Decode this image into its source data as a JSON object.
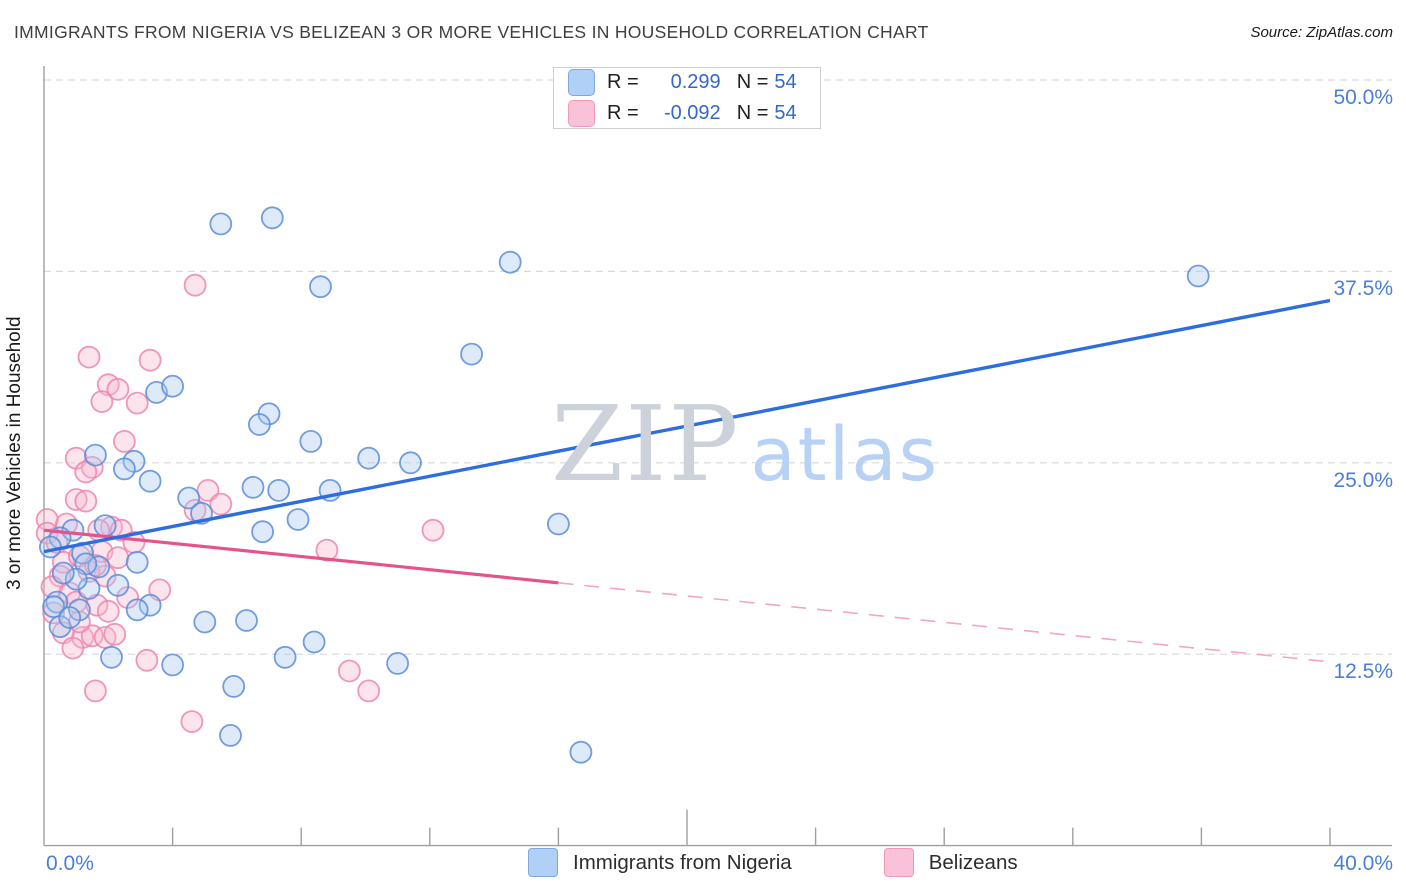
{
  "header": {
    "title": "IMMIGRANTS FROM NIGERIA VS BELIZEAN 3 OR MORE VEHICLES IN HOUSEHOLD CORRELATION CHART",
    "source": "Source: ZipAtlas.com"
  },
  "legend_box": {
    "rows": [
      {
        "series": "Immigrants from Nigeria",
        "r_label": "R =",
        "r_value": "0.299",
        "n_label": "N =",
        "n_value": "54"
      },
      {
        "series": "Belizeans",
        "r_label": "R =",
        "r_value": "-0.092",
        "n_label": "N =",
        "n_value": "54"
      }
    ]
  },
  "y_axis": {
    "title": "3 or more Vehicles in Household",
    "tick_labels": [
      "50.0%",
      "37.5%",
      "25.0%",
      "12.5%"
    ]
  },
  "x_axis": {
    "tick_labels": [
      "0.0%",
      "40.0%"
    ]
  },
  "watermark": {
    "zip": "ZIP",
    "atlas": "atlas"
  },
  "bottom_legend": {
    "items": [
      {
        "label": "Immigrants from Nigeria",
        "fill": "#b1d0f7",
        "border": "#7fa8dc"
      },
      {
        "label": "Belizeans",
        "fill": "#f9c2d8",
        "border": "#f09ab8"
      }
    ]
  },
  "chart_data": {
    "type": "scatter",
    "title": "Immigrants from Nigeria vs Belizean 3 or more Vehicles in Household",
    "xlabel_left": "0.0%",
    "xlabel_right": "40.0%",
    "ylabel": "3 or more Vehicles in Household",
    "xlim": [
      0,
      40
    ],
    "ylim": [
      0,
      52.5
    ],
    "x_unit": "%",
    "y_unit": "%",
    "grid_y_values": [
      50.0,
      37.5,
      25.0,
      12.5
    ],
    "x_tick_step": 4,
    "legend_position": "top-center and bottom-center",
    "series": [
      {
        "name": "Immigrants from Nigeria",
        "R": 0.299,
        "N": 54,
        "marker_fill": "#a8c8f0",
        "marker_stroke": "#5b8dd9",
        "points": [
          [
            5.5,
            40.6
          ],
          [
            7.1,
            41.0
          ],
          [
            14.5,
            38.1
          ],
          [
            8.6,
            36.5
          ],
          [
            35.9,
            37.2
          ],
          [
            13.3,
            32.1
          ],
          [
            3.5,
            29.6
          ],
          [
            4.0,
            30.0
          ],
          [
            7.0,
            28.2
          ],
          [
            6.7,
            27.5
          ],
          [
            8.3,
            26.4
          ],
          [
            10.1,
            25.3
          ],
          [
            11.4,
            25.0
          ],
          [
            1.6,
            25.5
          ],
          [
            2.8,
            25.1
          ],
          [
            2.5,
            24.6
          ],
          [
            3.3,
            23.8
          ],
          [
            6.5,
            23.4
          ],
          [
            7.3,
            23.2
          ],
          [
            8.9,
            23.2
          ],
          [
            4.5,
            22.7
          ],
          [
            4.9,
            21.7
          ],
          [
            7.9,
            21.3
          ],
          [
            6.8,
            20.5
          ],
          [
            16.0,
            21.0
          ],
          [
            0.9,
            20.6
          ],
          [
            0.5,
            20.1
          ],
          [
            1.2,
            19.1
          ],
          [
            1.7,
            18.2
          ],
          [
            2.9,
            18.5
          ],
          [
            1.3,
            18.4
          ],
          [
            0.4,
            15.9
          ],
          [
            0.3,
            15.6
          ],
          [
            1.4,
            16.8
          ],
          [
            1.1,
            15.4
          ],
          [
            3.3,
            15.7
          ],
          [
            2.9,
            15.4
          ],
          [
            6.3,
            14.7
          ],
          [
            5.0,
            14.6
          ],
          [
            5.9,
            10.4
          ],
          [
            5.8,
            7.2
          ],
          [
            2.1,
            12.3
          ],
          [
            4.0,
            11.8
          ],
          [
            7.5,
            12.3
          ],
          [
            8.4,
            13.3
          ],
          [
            11.0,
            11.9
          ],
          [
            16.7,
            6.1
          ],
          [
            1.0,
            17.4
          ],
          [
            0.5,
            14.3
          ],
          [
            0.2,
            19.5
          ],
          [
            0.6,
            17.8
          ],
          [
            1.9,
            20.9
          ],
          [
            2.3,
            17.0
          ],
          [
            0.8,
            14.9
          ]
        ],
        "trend_line": {
          "x_start": 0,
          "y_start": 19.2,
          "x_end": 40,
          "y_end": 35.6,
          "style": "solid",
          "color": "#2e6de0"
        }
      },
      {
        "name": "Belizeans",
        "R": -0.092,
        "N": 54,
        "marker_fill": "#f8b8d0",
        "marker_stroke": "#ef85ab",
        "points": [
          [
            4.7,
            36.6
          ],
          [
            1.4,
            31.9
          ],
          [
            3.3,
            31.7
          ],
          [
            2.0,
            30.1
          ],
          [
            2.3,
            29.8
          ],
          [
            1.8,
            29.0
          ],
          [
            2.9,
            28.9
          ],
          [
            2.5,
            26.4
          ],
          [
            1.0,
            25.3
          ],
          [
            1.5,
            24.7
          ],
          [
            1.3,
            24.4
          ],
          [
            5.1,
            23.2
          ],
          [
            0.1,
            21.3
          ],
          [
            0.1,
            20.4
          ],
          [
            1.0,
            22.6
          ],
          [
            1.3,
            22.5
          ],
          [
            2.1,
            20.8
          ],
          [
            2.4,
            20.6
          ],
          [
            1.7,
            20.6
          ],
          [
            1.8,
            19.2
          ],
          [
            0.6,
            18.5
          ],
          [
            2.3,
            18.8
          ],
          [
            1.9,
            17.6
          ],
          [
            0.5,
            17.6
          ],
          [
            0.25,
            16.9
          ],
          [
            0.8,
            16.5
          ],
          [
            1.0,
            15.9
          ],
          [
            1.65,
            15.7
          ],
          [
            3.6,
            16.7
          ],
          [
            8.8,
            19.3
          ],
          [
            12.1,
            20.6
          ],
          [
            5.5,
            22.3
          ],
          [
            4.7,
            21.9
          ],
          [
            1.2,
            13.6
          ],
          [
            1.5,
            13.7
          ],
          [
            1.9,
            13.6
          ],
          [
            2.2,
            13.8
          ],
          [
            3.2,
            12.1
          ],
          [
            1.6,
            10.1
          ],
          [
            4.6,
            8.1
          ],
          [
            9.5,
            11.4
          ],
          [
            10.1,
            10.1
          ],
          [
            0.4,
            19.8
          ],
          [
            0.7,
            21.0
          ],
          [
            1.1,
            18.9
          ],
          [
            1.4,
            17.9
          ],
          [
            0.3,
            15.2
          ],
          [
            1.1,
            14.6
          ],
          [
            2.6,
            16.2
          ],
          [
            0.6,
            13.9
          ],
          [
            2.0,
            15.3
          ],
          [
            0.9,
            12.9
          ],
          [
            1.6,
            18.3
          ],
          [
            2.8,
            19.8
          ]
        ],
        "trend_line": {
          "x_start": 0,
          "y_start": 20.6,
          "x_end": 16,
          "y_end": 17.16,
          "style": "solid",
          "color": "#e4548a"
        },
        "trend_line_extrapolated": {
          "x_start": 16,
          "y_start": 17.16,
          "x_end": 40,
          "y_end": 12.0,
          "style": "dashed",
          "color": "#f2a6c2"
        }
      }
    ]
  }
}
